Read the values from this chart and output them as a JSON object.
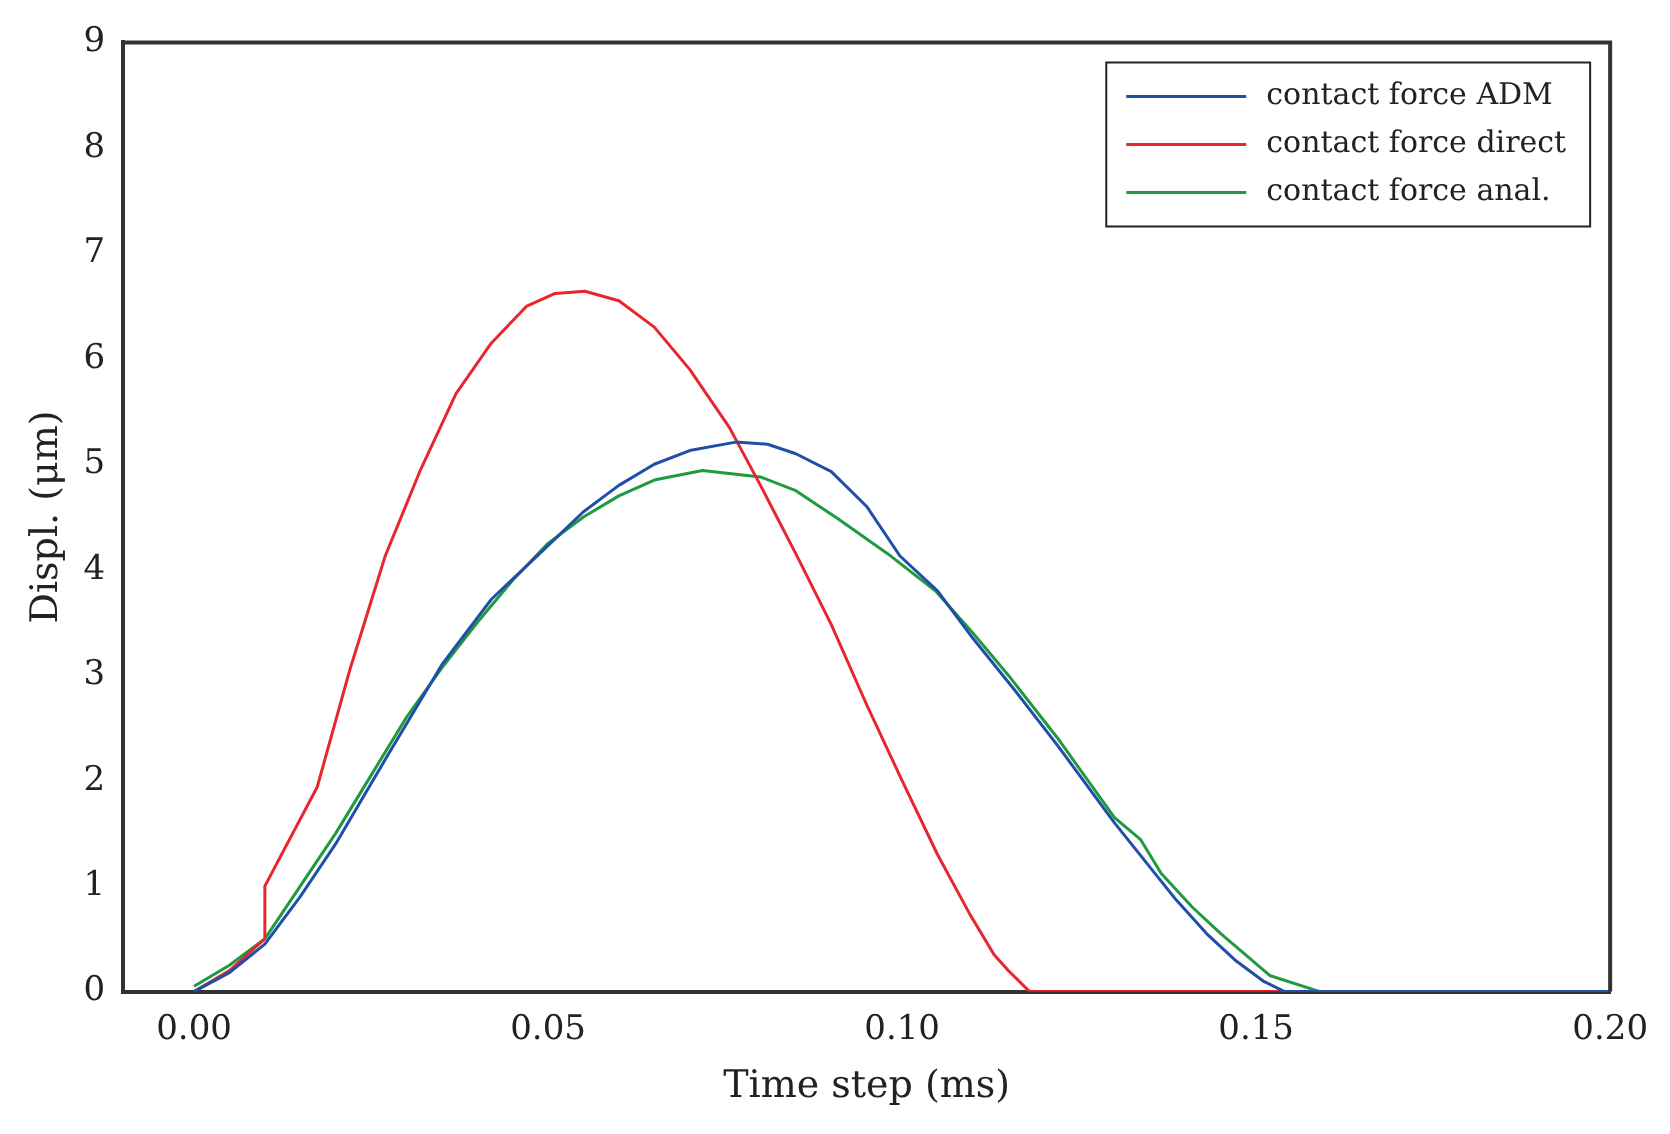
{
  "chart_data": {
    "type": "line",
    "xlabel": "Time step (ms)",
    "ylabel": "Displ. (μm)",
    "xlim": [
      -0.01,
      0.2
    ],
    "xticks": [
      {
        "value": 0,
        "label": "0.00"
      },
      {
        "value": 0.05,
        "label": "0.05"
      },
      {
        "value": 0.1,
        "label": "0.10"
      },
      {
        "value": 0.15,
        "label": "0.15"
      },
      {
        "value": 0.2,
        "label": "0.20"
      }
    ],
    "ylim": [
      0,
      9
    ],
    "yticks": [
      0,
      1,
      2,
      3,
      4,
      5,
      6,
      7,
      8,
      9
    ],
    "grid": false,
    "legend": "top right",
    "series": [
      {
        "name": "contact force ADM",
        "color": "#1f4fa8",
        "x": [
          0,
          0.005,
          0.01,
          0.015,
          0.02,
          0.027,
          0.035,
          0.042,
          0.0494,
          0.055,
          0.06,
          0.065,
          0.07,
          0.0765,
          0.081,
          0.085,
          0.09,
          0.095,
          0.0997,
          0.105,
          0.11,
          0.116,
          0.122,
          0.13,
          0.1387,
          0.143,
          0.147,
          0.151,
          0.154,
          0.2
        ],
        "values": [
          0,
          0.18,
          0.45,
          0.9,
          1.4,
          2.2,
          3.1,
          3.72,
          4.19,
          4.55,
          4.8,
          5.0,
          5.13,
          5.21,
          5.19,
          5.1,
          4.93,
          4.6,
          4.13,
          3.8,
          3.35,
          2.85,
          2.33,
          1.6,
          0.87,
          0.55,
          0.3,
          0.1,
          0,
          0
        ]
      },
      {
        "name": "contact force direct",
        "color": "#e8262e",
        "x": [
          0,
          0.005,
          0.01,
          0.01,
          0.0174,
          0.022,
          0.027,
          0.032,
          0.037,
          0.042,
          0.047,
          0.051,
          0.0552,
          0.06,
          0.065,
          0.07,
          0.0756,
          0.08,
          0.085,
          0.09,
          0.095,
          0.1,
          0.105,
          0.1096,
          0.113,
          0.115,
          0.118,
          0.2
        ],
        "values": [
          0,
          0.2,
          0.5,
          1.0,
          1.94,
          3.05,
          4.13,
          4.95,
          5.67,
          6.15,
          6.5,
          6.62,
          6.64,
          6.55,
          6.3,
          5.9,
          5.35,
          4.8,
          4.15,
          3.48,
          2.72,
          2.0,
          1.3,
          0.73,
          0.35,
          0.2,
          0,
          0
        ]
      },
      {
        "name": "contact force anal.",
        "color": "#1f9a40",
        "x": [
          0,
          0.005,
          0.01,
          0.015,
          0.02,
          0.025,
          0.03,
          0.035,
          0.04,
          0.045,
          0.05,
          0.055,
          0.06,
          0.065,
          0.0718,
          0.08,
          0.085,
          0.091,
          0.098,
          0.1047,
          0.11,
          0.115,
          0.122,
          0.13,
          0.1337,
          0.1366,
          0.141,
          0.145,
          0.152,
          0.159,
          0.2
        ],
        "values": [
          0.05,
          0.25,
          0.5,
          1.0,
          1.5,
          2.05,
          2.6,
          3.07,
          3.5,
          3.9,
          4.25,
          4.5,
          4.7,
          4.85,
          4.94,
          4.88,
          4.75,
          4.48,
          4.15,
          3.8,
          3.4,
          3.0,
          2.4,
          1.65,
          1.44,
          1.12,
          0.8,
          0.55,
          0.15,
          0,
          0
        ]
      }
    ]
  }
}
